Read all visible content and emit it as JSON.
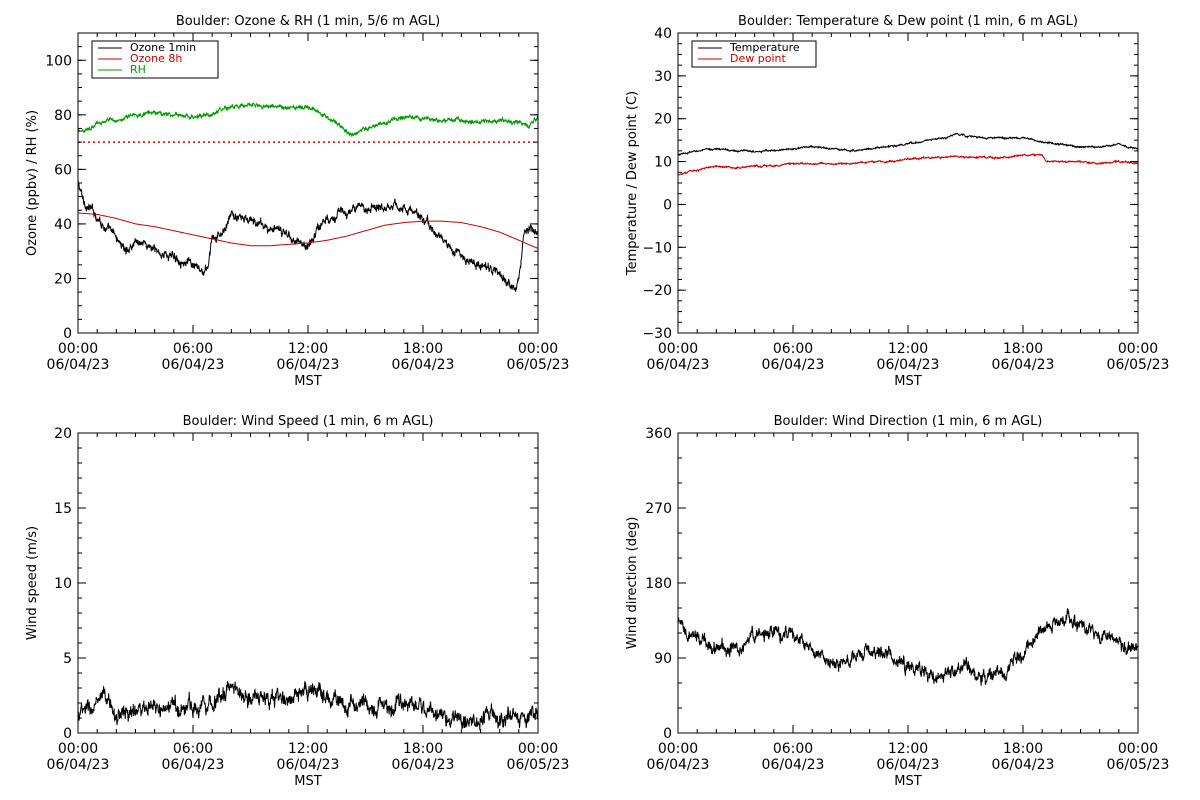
{
  "chart_data": [
    {
      "id": "ozone",
      "type": "line",
      "title": "Boulder: Ozone & RH (1 min, 5/6 m AGL)",
      "xlabel": "MST",
      "ylabel": "Ozone (ppbv) / RH (%)",
      "ylim": [
        0,
        110
      ],
      "yticks": [
        "0",
        "20",
        "40",
        "60",
        "80",
        "100"
      ],
      "ytick_values": [
        0,
        20,
        40,
        60,
        80,
        100
      ],
      "xlim": [
        0,
        24
      ],
      "xticks": [
        {
          "time": "00:00",
          "date": "06/04/23"
        },
        {
          "time": "06:00",
          "date": "06/04/23"
        },
        {
          "time": "12:00",
          "date": "06/04/23"
        },
        {
          "time": "18:00",
          "date": "06/04/23"
        },
        {
          "time": "00:00",
          "date": "06/05/23"
        }
      ],
      "legend_position": "top-left",
      "reference_line": {
        "value": 70,
        "color": "#cc0000",
        "style": "dotted"
      },
      "series": [
        {
          "name": "Ozone 1min",
          "color": "#000000",
          "noise": 1.8,
          "x": [
            0,
            0.3,
            1,
            1.5,
            2,
            2.5,
            3,
            3.5,
            4,
            4.5,
            5,
            5.5,
            6,
            6.5,
            6.8,
            7,
            7.2,
            7.5,
            8,
            8.5,
            9,
            9.5,
            10,
            10.5,
            11,
            11.5,
            12,
            12.2,
            12.5,
            13,
            13.5,
            14,
            14.5,
            15,
            15.5,
            16,
            16.5,
            17,
            17.5,
            18,
            18.5,
            19,
            19.5,
            20,
            20.5,
            21,
            21.5,
            22,
            22.5,
            22.8,
            23,
            23.3,
            23.6,
            24
          ],
          "y": [
            55,
            48,
            43,
            38,
            35,
            30,
            34,
            33,
            30,
            29,
            28,
            27,
            24,
            22,
            24,
            35,
            34,
            36,
            43,
            42,
            41,
            40,
            38,
            37,
            36,
            34,
            31,
            34,
            39,
            42,
            44,
            44,
            45,
            46,
            47,
            47,
            47,
            46,
            44,
            42,
            38,
            34,
            31,
            28,
            26,
            25,
            23,
            21,
            18,
            18,
            20,
            38,
            40,
            35
          ]
        },
        {
          "name": "Ozone 8h",
          "color": "#cc0000",
          "noise": 0,
          "x": [
            0,
            1,
            2,
            3,
            4,
            5,
            6,
            7,
            8,
            9,
            10,
            11,
            12,
            13,
            14,
            15,
            16,
            17,
            18,
            19,
            20,
            21,
            22,
            23,
            24
          ],
          "y": [
            44,
            43.5,
            42,
            40,
            39,
            37.5,
            36,
            34.5,
            33,
            32,
            32,
            32.5,
            33,
            34,
            35.5,
            37.5,
            39.5,
            40.5,
            41,
            41,
            40.5,
            39,
            37,
            34,
            31
          ]
        },
        {
          "name": "RH",
          "color": "#009900",
          "noise": 0.8,
          "x": [
            0,
            0.5,
            1,
            2,
            3,
            4,
            5,
            6,
            7,
            8,
            9,
            10,
            11,
            12,
            12.5,
            13,
            13.5,
            14,
            14.5,
            15,
            16,
            17,
            18,
            19,
            20,
            21,
            22,
            23,
            23.5,
            24
          ],
          "y": [
            74,
            75,
            77,
            78,
            80,
            81,
            80,
            79,
            80,
            83,
            84,
            83,
            82,
            83,
            81,
            79,
            77,
            74,
            73,
            75,
            77,
            79,
            78,
            78,
            78,
            77,
            78,
            77,
            76,
            79
          ]
        }
      ]
    },
    {
      "id": "temp",
      "type": "line",
      "title": "Boulder: Temperature & Dew point (1 min, 6 m AGL)",
      "xlabel": "MST",
      "ylabel": "Temperature / Dew point (C)",
      "ylim": [
        -30,
        40
      ],
      "yticks": [
        "−30",
        "−20",
        "−10",
        "0",
        "10",
        "20",
        "30",
        "40"
      ],
      "ytick_values": [
        -30,
        -20,
        -10,
        0,
        10,
        20,
        30,
        40
      ],
      "xlim": [
        0,
        24
      ],
      "xticks": [
        {
          "time": "00:00",
          "date": "06/04/23"
        },
        {
          "time": "06:00",
          "date": "06/04/23"
        },
        {
          "time": "12:00",
          "date": "06/04/23"
        },
        {
          "time": "18:00",
          "date": "06/04/23"
        },
        {
          "time": "00:00",
          "date": "06/05/23"
        }
      ],
      "legend_position": "top-left",
      "series": [
        {
          "name": "Temperature",
          "color": "#000000",
          "noise": 0.2,
          "x": [
            0,
            1,
            2,
            3,
            4,
            5,
            6,
            7,
            8,
            9,
            10,
            11,
            12,
            13,
            14,
            14.5,
            15,
            16,
            17,
            18,
            19,
            20,
            21,
            22,
            23,
            24
          ],
          "y": [
            11.5,
            12.5,
            13,
            12.5,
            12.5,
            12.5,
            13,
            13.5,
            13,
            12.5,
            13,
            13.5,
            14,
            15,
            15.5,
            16.5,
            16,
            15.5,
            15.5,
            15.5,
            14.5,
            14,
            13.5,
            13.5,
            14,
            13
          ]
        },
        {
          "name": "Dew point",
          "color": "#cc0000",
          "noise": 0.2,
          "x": [
            0,
            1,
            2,
            3,
            4,
            5,
            6,
            7,
            8,
            9,
            10,
            11,
            12,
            13,
            14,
            14.5,
            15,
            16,
            17,
            18,
            19,
            19.2,
            20,
            21,
            22,
            23,
            24
          ],
          "y": [
            7,
            8,
            9,
            8.5,
            9,
            9,
            9.5,
            9.5,
            9.5,
            9.5,
            10,
            10,
            10.5,
            11,
            11,
            11.5,
            11,
            11,
            11,
            11.5,
            11.5,
            10,
            10,
            10,
            9.5,
            10,
            9.5
          ]
        }
      ]
    },
    {
      "id": "wspd",
      "type": "line",
      "title": "Boulder: Wind Speed (1 min, 6 m AGL)",
      "xlabel": "MST",
      "ylabel": "Wind speed (m/s)",
      "ylim": [
        0,
        20
      ],
      "yticks": [
        "0",
        "5",
        "10",
        "15",
        "20"
      ],
      "ytick_values": [
        0,
        5,
        10,
        15,
        20
      ],
      "xlim": [
        0,
        24
      ],
      "xticks": [
        {
          "time": "00:00",
          "date": "06/04/23"
        },
        {
          "time": "06:00",
          "date": "06/04/23"
        },
        {
          "time": "12:00",
          "date": "06/04/23"
        },
        {
          "time": "18:00",
          "date": "06/04/23"
        },
        {
          "time": "00:00",
          "date": "06/05/23"
        }
      ],
      "series": [
        {
          "color": "#000000",
          "noise": 0.6,
          "x": [
            0,
            1,
            1.5,
            2,
            3,
            4,
            5,
            6,
            7,
            8,
            9,
            10,
            11,
            12,
            12.5,
            13,
            14,
            15,
            16,
            17,
            18,
            19,
            20,
            21,
            22,
            23,
            24
          ],
          "y": [
            1.2,
            1.8,
            2.2,
            1.2,
            1.5,
            1.4,
            1.7,
            1.8,
            2.2,
            3,
            2.5,
            2.2,
            2.3,
            2.4,
            3,
            2.5,
            1.8,
            1.9,
            1.7,
            1.8,
            1.9,
            1,
            0.8,
            0.9,
            1,
            1.2,
            1.3
          ]
        }
      ]
    },
    {
      "id": "wdir",
      "type": "line",
      "title": "Boulder: Wind Direction (1 min, 6 m AGL)",
      "xlabel": "MST",
      "ylabel": "Wind direction (deg)",
      "ylim": [
        0,
        360
      ],
      "yticks": [
        "0",
        "90",
        "180",
        "270",
        "360"
      ],
      "ytick_values": [
        0,
        90,
        180,
        270,
        360
      ],
      "xlim": [
        0,
        24
      ],
      "xticks": [
        {
          "time": "00:00",
          "date": "06/04/23"
        },
        {
          "time": "06:00",
          "date": "06/04/23"
        },
        {
          "time": "12:00",
          "date": "06/04/23"
        },
        {
          "time": "18:00",
          "date": "06/04/23"
        },
        {
          "time": "00:00",
          "date": "06/05/23"
        }
      ],
      "series": [
        {
          "color": "#000000",
          "noise": 9,
          "x": [
            0,
            0.5,
            1,
            2,
            3,
            4,
            5,
            6,
            7,
            8,
            9,
            10,
            11,
            12,
            13,
            14,
            15,
            16,
            17,
            18,
            19,
            20,
            21,
            22,
            23,
            24
          ],
          "y": [
            130,
            115,
            112,
            105,
            100,
            118,
            120,
            118,
            95,
            85,
            85,
            100,
            95,
            80,
            70,
            75,
            80,
            65,
            70,
            95,
            125,
            140,
            130,
            120,
            110,
            100
          ]
        }
      ]
    }
  ]
}
